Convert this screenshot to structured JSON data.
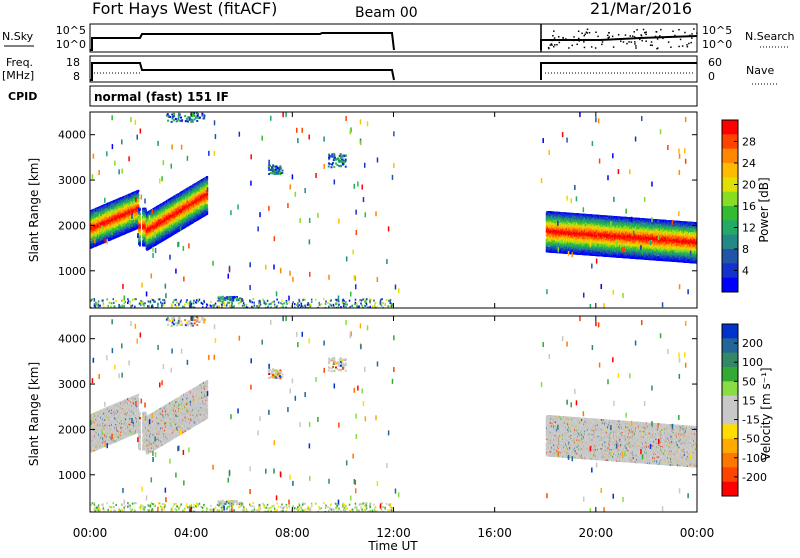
{
  "header": {
    "station": "Fort Hays West (fitACF)",
    "beam": "Beam 00",
    "date": "21/Mar/2016"
  },
  "strip_labels": {
    "nsky": "N.Sky",
    "nsearch": "N.Search",
    "freq": "Freq.",
    "freq_unit": "[MHz]",
    "nave": "Nave",
    "cpid": "CPID",
    "mode": "normal (fast) 151 IF",
    "noise_ticks_left": [
      "10^5",
      "10^0"
    ],
    "noise_ticks_right": [
      "10^5",
      "10^0"
    ],
    "freq_ticks": [
      "18",
      "8"
    ],
    "nave_ticks": [
      "60",
      "0"
    ]
  },
  "chart_data": [
    {
      "type": "heatmap",
      "panel": "power",
      "ylabel": "Slant Range [km]",
      "ylim": [
        180,
        4500
      ],
      "yticks": [
        "1000",
        "2000",
        "3000",
        "4000"
      ],
      "xlim": [
        0,
        24
      ],
      "colorbar": {
        "label": "Power [dB]",
        "ticks": [
          "28",
          "24",
          "20",
          "16",
          "12",
          "8",
          "4"
        ],
        "colors": [
          "#ff0000",
          "#ff4400",
          "#ff8800",
          "#ffbb00",
          "#e0e000",
          "#88dd22",
          "#33bb33",
          "#22aa66",
          "#228888",
          "#2255aa",
          "#1133cc",
          "#0000ff"
        ]
      },
      "scatter_regions": [
        {
          "t": [
            0.0,
            1.9
          ],
          "range": [
            1700,
            2550
          ],
          "band": "main"
        },
        {
          "t": [
            2.0,
            4.6
          ],
          "range": [
            1500,
            3050
          ],
          "band": "rising"
        },
        {
          "t": [
            18.0,
            24.0
          ],
          "range": [
            1400,
            2400
          ],
          "band": "main"
        }
      ]
    },
    {
      "type": "heatmap",
      "panel": "velocity",
      "ylabel": "Slant Range [km]",
      "ylim": [
        180,
        4500
      ],
      "yticks": [
        "1000",
        "2000",
        "3000",
        "4000"
      ],
      "xlim": [
        0,
        24
      ],
      "xticks": [
        "00:00",
        "04:00",
        "08:00",
        "12:00",
        "16:00",
        "20:00",
        "00:00"
      ],
      "xlabel": "Time UT",
      "colorbar": {
        "label": "Velocity [m s⁻¹]",
        "ticks": [
          "200",
          "100",
          "50",
          "15",
          "-15",
          "-50",
          "-100",
          "-200"
        ],
        "colors": [
          "#0033cc",
          "#226699",
          "#338866",
          "#33aa33",
          "#88dd44",
          "#c8c8c8",
          "#c8c8c8",
          "#ffdd00",
          "#ffaa00",
          "#ff7700",
          "#ff4400",
          "#ff0000"
        ]
      }
    }
  ]
}
